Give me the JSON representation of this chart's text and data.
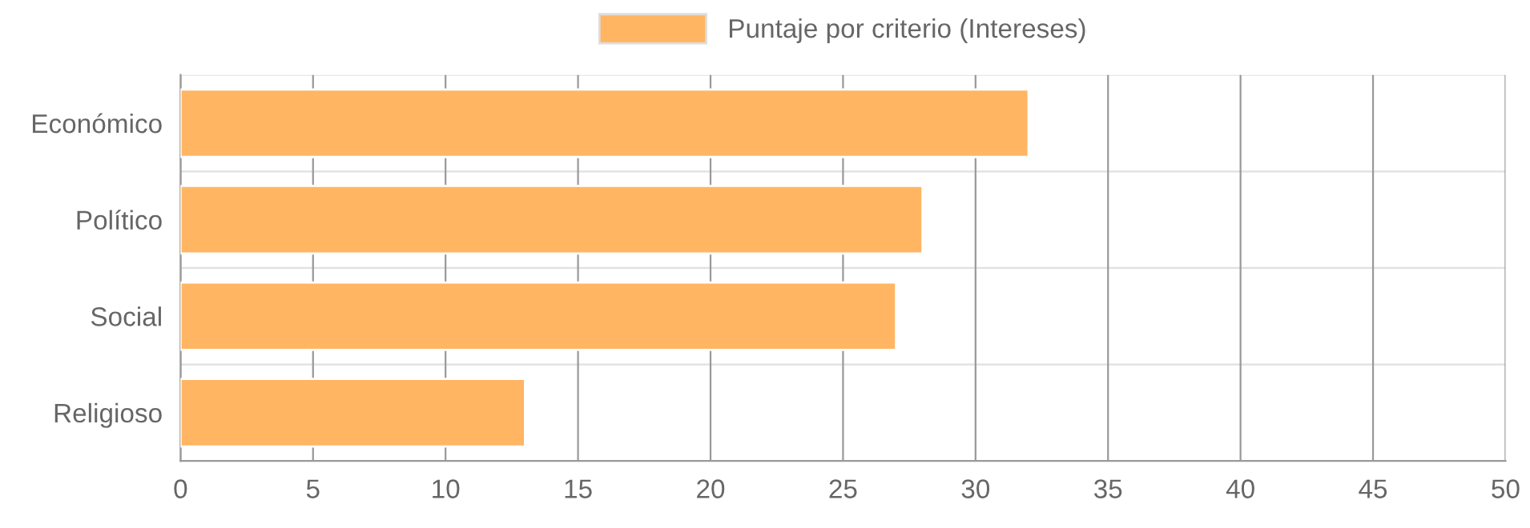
{
  "chart_data": {
    "type": "bar",
    "orientation": "horizontal",
    "categories": [
      "Económico",
      "Político",
      "Social",
      "Religioso"
    ],
    "series": [
      {
        "name": "Puntaje por criterio (Intereses)",
        "color": "#ffb562",
        "values": [
          32,
          28,
          27,
          13
        ]
      }
    ],
    "xlim": [
      0,
      50
    ],
    "xticks": [
      0,
      5,
      10,
      15,
      20,
      25,
      30,
      35,
      40,
      45,
      50
    ],
    "grid": true,
    "legend": "top"
  }
}
